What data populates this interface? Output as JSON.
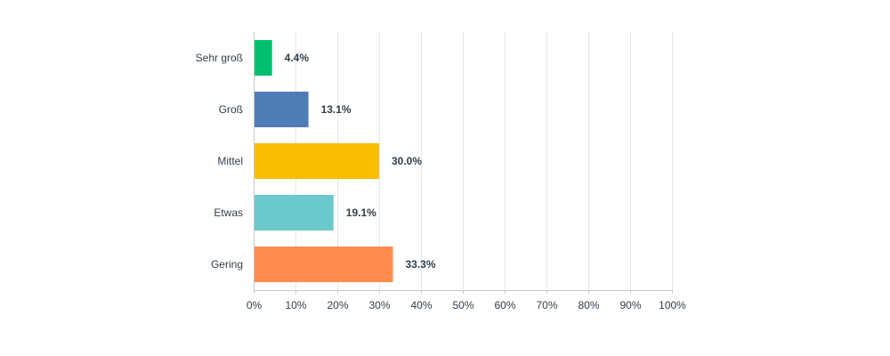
{
  "chart_data": {
    "type": "bar",
    "orientation": "horizontal",
    "title": "",
    "xlabel": "",
    "ylabel": "",
    "categories": [
      "Sehr groß",
      "Groß",
      "Mittel",
      "Etwas",
      "Gering"
    ],
    "values": [
      4.4,
      13.1,
      30.0,
      19.1,
      33.3
    ],
    "value_labels": [
      "4.4%",
      "13.1%",
      "30.0%",
      "19.1%",
      "33.3%"
    ],
    "colors": [
      "#00bf6f",
      "#507cb6",
      "#f9be00",
      "#6bc8cd",
      "#ff8b4f"
    ],
    "xlim": [
      0,
      100
    ],
    "x_ticks": [
      0,
      10,
      20,
      30,
      40,
      50,
      60,
      70,
      80,
      90,
      100
    ],
    "x_tick_labels": [
      "0%",
      "10%",
      "20%",
      "30%",
      "40%",
      "50%",
      "60%",
      "70%",
      "80%",
      "90%",
      "100%"
    ],
    "grid": true,
    "legend": "none"
  }
}
